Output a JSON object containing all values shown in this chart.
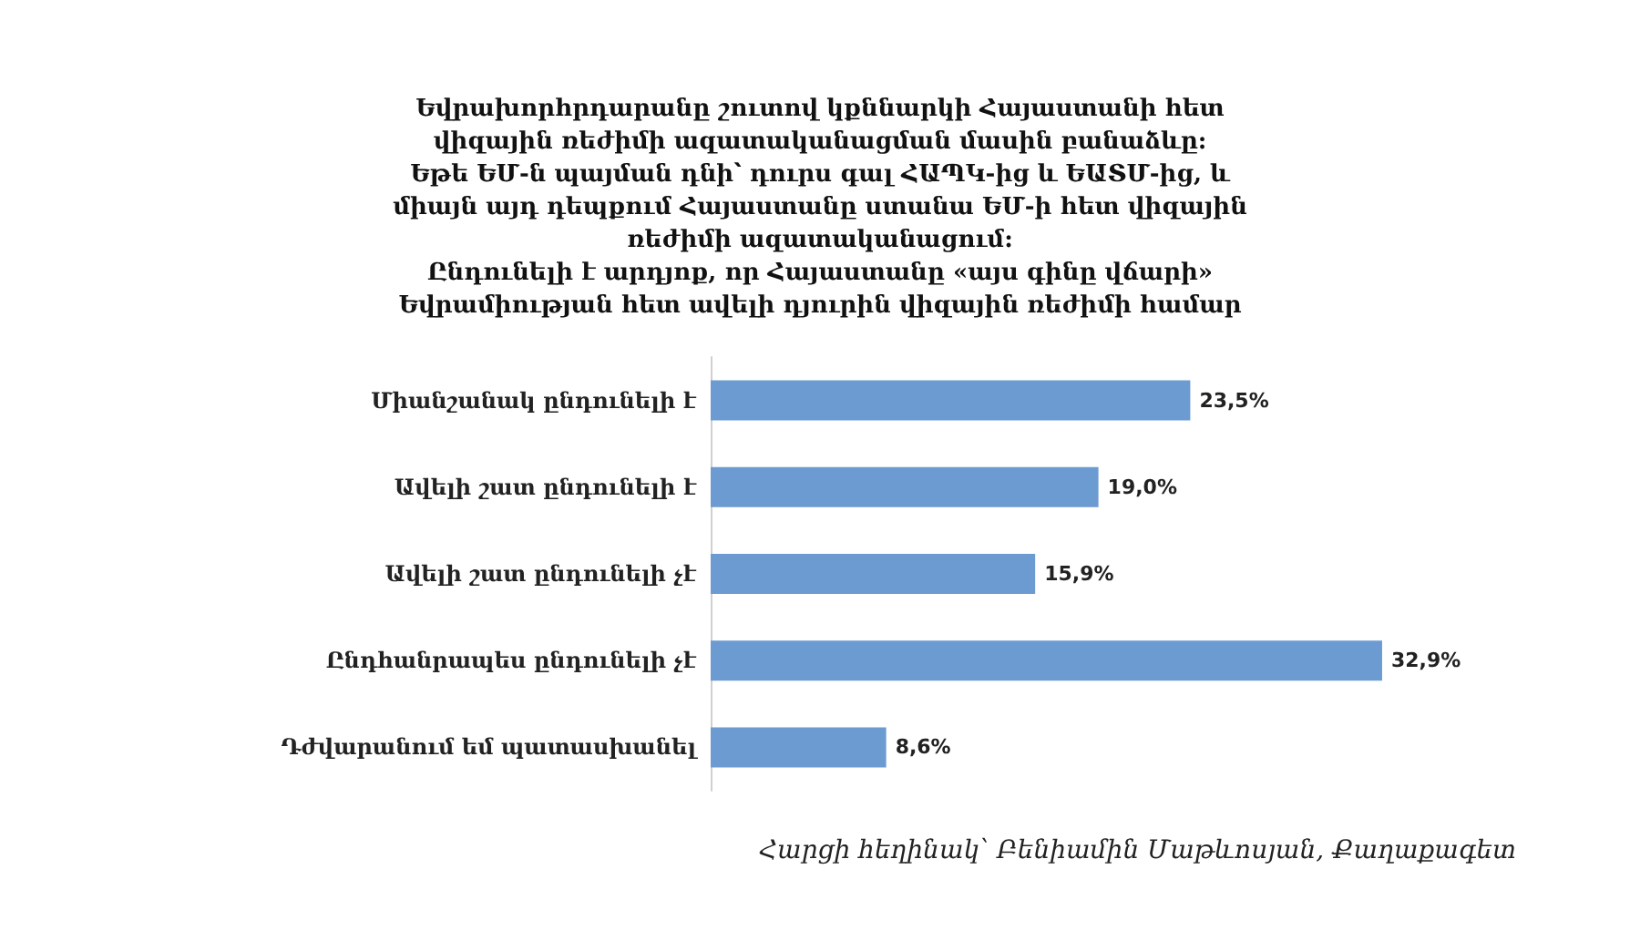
{
  "chart_data": {
    "type": "bar",
    "orientation": "horizontal",
    "title": "Եվրախորհրդարանը շուտով կքննարկի Հայաստանի հետ\nվիզային ռեժիմի ազատականացման մասին բանաձևը:\nԵթե ԵՄ-ն պայման դնի՝ դուրս գալ ՀԱՊԿ-ից և ԵԱՏՄ-ից, և\nմիայն այդ դեպքում Հայաստանը ստանա ԵՄ-ի հետ վիզային\nռեժիմի ազատականացում:\nԸնդունելի է արդյոք, որ Հայաստանը «այս գինը վճարի»\nԵվրամիության հետ ավելի դյուրին վիզային ռեժիմի համար",
    "categories": [
      "Միանշանակ ընդունելի է",
      "Ավելի շատ ընդունելի է",
      "Ավելի շատ ընդունելի չէ",
      "Ընդհանրապես ընդունելի չէ",
      "Դժվարանում եմ պատասխանել"
    ],
    "values": [
      23.5,
      19.0,
      15.9,
      32.9,
      8.6
    ],
    "value_labels": [
      "23,5%",
      "19,0%",
      "15,9%",
      "32,9%",
      "8,6%"
    ],
    "color": "#6b9bd1",
    "annotations": [
      "Հարցի հեղինակ՝ Բենիամին Մաթևոսյան, Քաղաքագետ"
    ]
  }
}
